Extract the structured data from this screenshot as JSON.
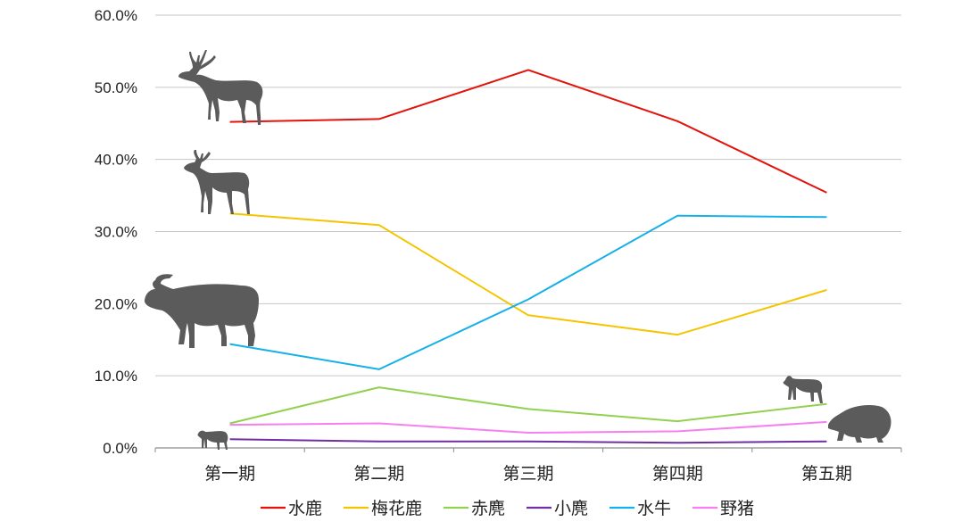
{
  "chart_data": {
    "type": "line",
    "categories": [
      "第一期",
      "第二期",
      "第三期",
      "第四期",
      "第五期"
    ],
    "ylim": [
      0,
      60
    ],
    "yticks": [
      "0.0%",
      "10.0%",
      "20.0%",
      "30.0%",
      "40.0%",
      "50.0%",
      "60.0%"
    ],
    "grid": true,
    "legend_position": "bottom",
    "series": [
      {
        "name": "水鹿",
        "color": "#e3120b",
        "values": [
          45.2,
          45.6,
          52.4,
          45.3,
          35.4
        ]
      },
      {
        "name": "梅花鹿",
        "color": "#f5c400",
        "values": [
          32.5,
          30.9,
          18.4,
          15.7,
          21.9
        ]
      },
      {
        "name": "赤麂",
        "color": "#92d050",
        "values": [
          3.4,
          8.4,
          5.4,
          3.7,
          6.1
        ]
      },
      {
        "name": "小麂",
        "color": "#7030a0",
        "values": [
          1.2,
          0.9,
          0.9,
          0.7,
          0.9
        ]
      },
      {
        "name": "水牛",
        "color": "#16b0e8",
        "values": [
          14.4,
          10.9,
          20.6,
          32.2,
          32.0
        ]
      },
      {
        "name": "野猪",
        "color": "#f77ff0",
        "values": [
          3.2,
          3.4,
          2.1,
          2.3,
          3.6
        ]
      }
    ],
    "icons": [
      "sambar-deer-icon",
      "sika-deer-icon",
      "water-buffalo-icon",
      "muntjac-icon",
      "small-muntjac-icon",
      "wild-boar-icon"
    ]
  }
}
